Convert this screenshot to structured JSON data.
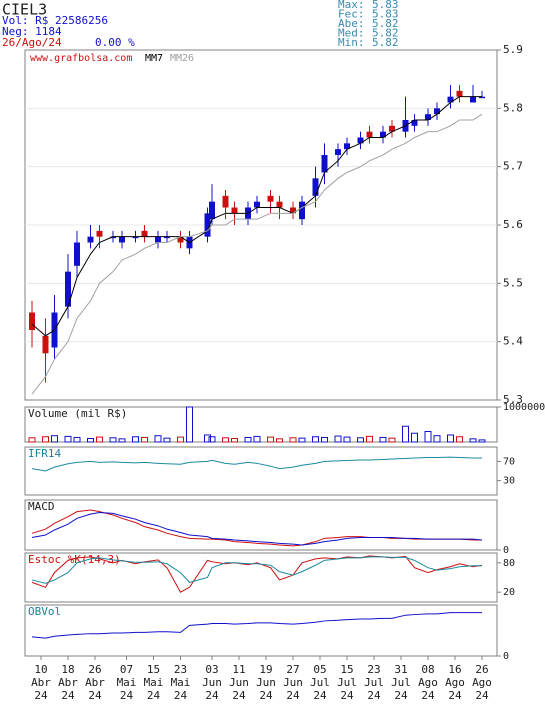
{
  "header": {
    "ticker": "CIEL3",
    "vol": "Vol: R$ 22586256",
    "neg": "Neg: 1184",
    "date": "26/Ago/24",
    "change": "0.00 %",
    "stats": [
      {
        "label": "Max:",
        "value": 5.83
      },
      {
        "label": "Fec:",
        "value": 5.83
      },
      {
        "label": "Abe:",
        "value": 5.82
      },
      {
        "label": "Med:",
        "value": 5.82
      },
      {
        "label": "Min:",
        "value": 5.82
      }
    ]
  },
  "chart_data": [
    {
      "type": "candlestick",
      "watermark": "www.grafbolsa.com",
      "up_color": "#1010cc",
      "down_color": "#cc1010",
      "x": [
        "2024-04-08",
        "2024-04-11",
        "2024-04-15",
        "2024-04-18",
        "2024-04-22",
        "2024-04-25",
        "2024-04-29",
        "2024-05-02",
        "2024-05-06",
        "2024-05-09",
        "2024-05-13",
        "2024-05-16",
        "2024-05-20",
        "2024-05-23",
        "2024-05-27",
        "2024-05-31",
        "2024-06-03",
        "2024-06-06",
        "2024-06-10",
        "2024-06-13",
        "2024-06-17",
        "2024-06-20",
        "2024-06-24",
        "2024-06-27",
        "2024-07-01",
        "2024-07-04",
        "2024-07-08",
        "2024-07-11",
        "2024-07-15",
        "2024-07-18",
        "2024-07-22",
        "2024-07-25",
        "2024-07-29",
        "2024-08-01",
        "2024-08-05",
        "2024-08-08",
        "2024-08-12",
        "2024-08-15",
        "2024-08-19",
        "2024-08-22",
        "2024-08-26"
      ],
      "open": [
        5.45,
        5.41,
        5.39,
        5.46,
        5.53,
        5.57,
        5.59,
        5.58,
        5.57,
        5.58,
        5.59,
        5.57,
        5.58,
        5.58,
        5.56,
        5.58,
        5.61,
        5.65,
        5.63,
        5.61,
        5.63,
        5.65,
        5.64,
        5.63,
        5.61,
        5.65,
        5.69,
        5.72,
        5.73,
        5.74,
        5.76,
        5.75,
        5.77,
        5.76,
        5.77,
        5.78,
        5.79,
        5.81,
        5.83,
        5.81,
        5.82
      ],
      "high": [
        5.47,
        5.44,
        5.48,
        5.55,
        5.59,
        5.6,
        5.6,
        5.59,
        5.59,
        5.59,
        5.6,
        5.59,
        5.59,
        5.59,
        5.59,
        5.63,
        5.67,
        5.66,
        5.64,
        5.64,
        5.65,
        5.66,
        5.65,
        5.64,
        5.65,
        5.7,
        5.74,
        5.74,
        5.75,
        5.76,
        5.77,
        5.77,
        5.78,
        5.82,
        5.79,
        5.8,
        5.81,
        5.84,
        5.84,
        5.84,
        5.83
      ],
      "low": [
        5.39,
        5.33,
        5.37,
        5.44,
        5.51,
        5.56,
        5.56,
        5.57,
        5.56,
        5.57,
        5.57,
        5.56,
        5.57,
        5.56,
        5.55,
        5.57,
        5.6,
        5.61,
        5.6,
        5.6,
        5.62,
        5.62,
        5.61,
        5.61,
        5.6,
        5.63,
        5.67,
        5.7,
        5.72,
        5.73,
        5.74,
        5.74,
        5.75,
        5.75,
        5.76,
        5.77,
        5.78,
        5.8,
        5.81,
        5.81,
        5.82
      ],
      "close": [
        5.42,
        5.38,
        5.45,
        5.52,
        5.57,
        5.58,
        5.58,
        5.58,
        5.58,
        5.58,
        5.58,
        5.58,
        5.58,
        5.57,
        5.58,
        5.62,
        5.64,
        5.63,
        5.62,
        5.63,
        5.64,
        5.64,
        5.63,
        5.62,
        5.64,
        5.68,
        5.72,
        5.73,
        5.74,
        5.75,
        5.75,
        5.76,
        5.76,
        5.78,
        5.78,
        5.79,
        5.8,
        5.82,
        5.82,
        5.82,
        5.82
      ],
      "series": [
        {
          "name": "MM7",
          "color": "#000000",
          "values": [
            5.43,
            5.41,
            5.42,
            5.46,
            5.51,
            5.55,
            5.57,
            5.58,
            5.58,
            5.58,
            5.58,
            5.58,
            5.58,
            5.58,
            5.57,
            5.59,
            5.61,
            5.62,
            5.62,
            5.62,
            5.63,
            5.63,
            5.63,
            5.62,
            5.63,
            5.65,
            5.69,
            5.71,
            5.73,
            5.74,
            5.75,
            5.75,
            5.76,
            5.77,
            5.78,
            5.78,
            5.79,
            5.81,
            5.82,
            5.82,
            5.82
          ]
        },
        {
          "name": "MM26",
          "color": "#a0a0a0",
          "values": [
            5.31,
            5.34,
            5.37,
            5.4,
            5.44,
            5.47,
            5.5,
            5.52,
            5.54,
            5.55,
            5.56,
            5.57,
            5.57,
            5.58,
            5.58,
            5.59,
            5.6,
            5.6,
            5.61,
            5.61,
            5.61,
            5.62,
            5.62,
            5.62,
            5.63,
            5.64,
            5.66,
            5.68,
            5.69,
            5.7,
            5.71,
            5.72,
            5.73,
            5.74,
            5.75,
            5.76,
            5.76,
            5.77,
            5.78,
            5.78,
            5.79
          ]
        }
      ],
      "ylim": [
        5.3,
        5.9
      ],
      "yticks": [
        5.3,
        5.4,
        5.5,
        5.6,
        5.7,
        5.8,
        5.9
      ],
      "xticks": [
        {
          "value": "2024-04-10",
          "day": "10",
          "month": "Abr",
          "year": "24"
        },
        {
          "value": "2024-04-18",
          "day": "18",
          "month": "Abr",
          "year": "24"
        },
        {
          "value": "2024-04-26",
          "day": "26",
          "month": "Abr",
          "year": "24"
        },
        {
          "value": "2024-05-07",
          "day": "07",
          "month": "Mai",
          "year": "24"
        },
        {
          "value": "2024-05-15",
          "day": "15",
          "month": "Mai",
          "year": "24"
        },
        {
          "value": "2024-05-23",
          "day": "23",
          "month": "Mai",
          "year": "24"
        },
        {
          "value": "2024-06-03",
          "day": "03",
          "month": "Jun",
          "year": "24"
        },
        {
          "value": "2024-06-11",
          "day": "11",
          "month": "Jun",
          "year": "24"
        },
        {
          "value": "2024-06-19",
          "day": "19",
          "month": "Jun",
          "year": "24"
        },
        {
          "value": "2024-06-27",
          "day": "27",
          "month": "Jun",
          "year": "24"
        },
        {
          "value": "2024-07-05",
          "day": "05",
          "month": "Jul",
          "year": "24"
        },
        {
          "value": "2024-07-15",
          "day": "15",
          "month": "Jul",
          "year": "24"
        },
        {
          "value": "2024-07-23",
          "day": "23",
          "month": "Jul",
          "year": "24"
        },
        {
          "value": "2024-07-31",
          "day": "31",
          "month": "Jul",
          "year": "24"
        },
        {
          "value": "2024-08-08",
          "day": "08",
          "month": "Ago",
          "year": "24"
        },
        {
          "value": "2024-08-16",
          "day": "16",
          "month": "Ago",
          "year": "24"
        },
        {
          "value": "2024-08-26",
          "day": "26",
          "month": "Ago",
          "year": "24"
        }
      ]
    },
    {
      "type": "bar",
      "title": "Volume (mil R$)",
      "title_color": "#202020",
      "values": [
        120000,
        150000,
        180000,
        160000,
        130000,
        100000,
        140000,
        120000,
        90000,
        150000,
        130000,
        180000,
        110000,
        140000,
        1000000,
        200000,
        150000,
        120000,
        100000,
        130000,
        160000,
        140000,
        90000,
        120000,
        110000,
        150000,
        130000,
        170000,
        140000,
        120000,
        160000,
        130000,
        110000,
        450000,
        250000,
        300000,
        180000,
        200000,
        150000,
        90000,
        60000
      ],
      "ylim": [
        0,
        1000000
      ],
      "yticks": [
        {
          "value": 1000000,
          "label": "1000000"
        }
      ]
    },
    {
      "type": "line",
      "title": "IFR14",
      "title_color": "#1a7fa0",
      "series": [
        {
          "color": "#1a8aa0",
          "values": [
            55,
            50,
            58,
            65,
            68,
            70,
            68,
            69,
            68,
            67,
            68,
            66,
            65,
            64,
            68,
            70,
            72,
            66,
            64,
            68,
            66,
            60,
            55,
            58,
            62,
            66,
            70,
            71,
            72,
            73,
            73,
            74,
            75,
            76,
            77,
            78,
            78,
            79,
            78,
            77,
            77
          ]
        }
      ],
      "ylim": [
        0,
        100
      ],
      "yticks": [
        70,
        30
      ]
    },
    {
      "type": "line",
      "title": "MACD",
      "title_color": "#202020",
      "series": [
        {
          "color": "#cc1010",
          "values": [
            0.02,
            0.025,
            0.032,
            0.04,
            0.046,
            0.048,
            0.046,
            0.042,
            0.038,
            0.033,
            0.028,
            0.024,
            0.02,
            0.016,
            0.014,
            0.013,
            0.013,
            0.012,
            0.01,
            0.009,
            0.008,
            0.007,
            0.006,
            0.005,
            0.006,
            0.01,
            0.014,
            0.015,
            0.016,
            0.016,
            0.015,
            0.015,
            0.014,
            0.014,
            0.013,
            0.013,
            0.013,
            0.013,
            0.013,
            0.012,
            0.012
          ]
        },
        {
          "color": "#1010cc",
          "values": [
            0.015,
            0.018,
            0.024,
            0.031,
            0.038,
            0.043,
            0.045,
            0.044,
            0.041,
            0.037,
            0.033,
            0.029,
            0.025,
            0.021,
            0.018,
            0.016,
            0.014,
            0.013,
            0.012,
            0.011,
            0.01,
            0.009,
            0.008,
            0.007,
            0.006,
            0.008,
            0.01,
            0.012,
            0.014,
            0.015,
            0.015,
            0.015,
            0.015,
            0.014,
            0.014,
            0.013,
            0.013,
            0.013,
            0.013,
            0.013,
            0.012
          ]
        }
      ],
      "ylim": [
        0,
        0.06
      ],
      "yticks": [
        0
      ]
    },
    {
      "type": "line",
      "title": "Estoc %K(14,3)",
      "title_color": "#cc1010",
      "series": [
        {
          "color": "#cc1010",
          "values": [
            40,
            30,
            60,
            85,
            90,
            92,
            88,
            80,
            85,
            78,
            82,
            86,
            70,
            20,
            30,
            85,
            82,
            78,
            80,
            76,
            80,
            70,
            45,
            55,
            80,
            88,
            90,
            88,
            92,
            90,
            94,
            92,
            90,
            93,
            70,
            60,
            66,
            72,
            78,
            72,
            75
          ]
        },
        {
          "color": "#1a8aa0",
          "values": [
            45,
            38,
            45,
            60,
            80,
            88,
            90,
            86,
            84,
            81,
            81,
            82,
            78,
            60,
            40,
            50,
            70,
            80,
            80,
            78,
            78,
            75,
            62,
            55,
            62,
            75,
            85,
            88,
            90,
            90,
            92,
            92,
            91,
            91,
            85,
            70,
            65,
            68,
            72,
            74,
            74
          ]
        }
      ],
      "ylim": [
        0,
        100
      ],
      "yticks": [
        80,
        20
      ]
    },
    {
      "type": "line",
      "title": "OBVol",
      "title_color": "#1a7fa0",
      "series": [
        {
          "color": "#1010cc",
          "values": [
            30,
            28,
            31,
            33,
            34,
            35,
            35,
            36,
            36,
            37,
            37,
            38,
            38,
            37,
            48,
            50,
            51,
            51,
            50,
            51,
            52,
            52,
            51,
            50,
            51,
            53,
            55,
            56,
            57,
            58,
            58,
            59,
            59,
            64,
            65,
            66,
            66,
            68,
            68,
            68,
            68
          ]
        }
      ],
      "ylim": [
        0,
        80
      ],
      "yticks": [
        0
      ]
    }
  ]
}
